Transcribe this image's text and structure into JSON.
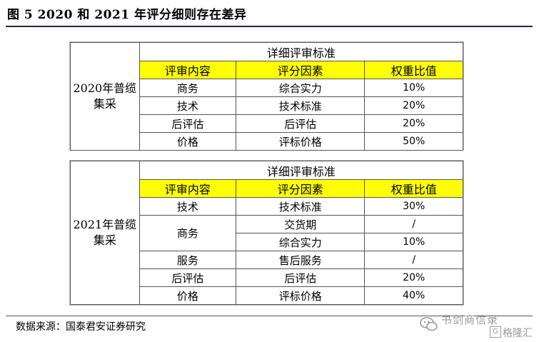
{
  "title": "图 5 2020 和 2021 年评分细则存在差异",
  "table2020": {
    "label": "2020年普缆集采",
    "detail_header": "详细评审标准",
    "headers": [
      "评审内容",
      "评分因素",
      "权重比值"
    ],
    "rows": [
      [
        "商务",
        "综合实力",
        "10%"
      ],
      [
        "技术",
        "技术标准",
        "20%"
      ],
      [
        "后评估",
        "后评估",
        "20%"
      ],
      [
        "价格",
        "评标价格",
        "50%"
      ]
    ]
  },
  "table2021": {
    "label": "2021年普缆集采",
    "detail_header": "详细评审标准",
    "headers": [
      "评审内容",
      "评分因素",
      "权重比值"
    ],
    "r1": [
      "技术",
      "技术标准",
      "30%"
    ],
    "shangwu": "商务",
    "r2": [
      "交货期",
      "/"
    ],
    "r3": [
      "综合实力",
      "10%"
    ],
    "r4": [
      "服务",
      "售后服务",
      "/"
    ],
    "r5": [
      "后评估",
      "后评估",
      "20%"
    ],
    "r6": [
      "价格",
      "评标价格",
      "40%"
    ]
  },
  "footer": "数据来源：国泰君安证券研究",
  "watermark": {
    "line1": "书剑商信录",
    "line2": "格隆汇",
    "badge": "G",
    "icon": "wechat-icon"
  }
}
